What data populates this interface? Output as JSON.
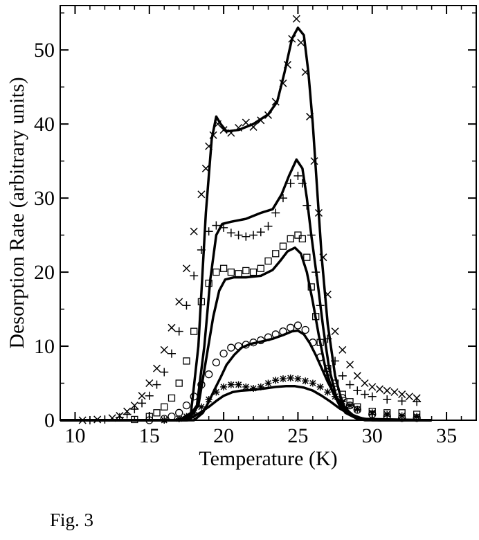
{
  "figure_caption": "Fig. 3",
  "chart_data": {
    "type": "scatter",
    "title": "",
    "xlabel": "Temperature (K)",
    "ylabel": "Desorption Rate (arbitrary units)",
    "xlim": [
      9,
      37
    ],
    "ylim": [
      0,
      56
    ],
    "xticks": [
      10,
      15,
      20,
      25,
      30,
      35
    ],
    "yticks": [
      0,
      10,
      20,
      30,
      40,
      50
    ],
    "grid": false,
    "legend": "none",
    "series": [
      {
        "marker": "x",
        "points": [
          [
            10.5,
            0
          ],
          [
            11.5,
            0.1
          ],
          [
            12.5,
            0.3
          ],
          [
            13,
            0.6
          ],
          [
            13.5,
            1.2
          ],
          [
            14,
            2
          ],
          [
            14.5,
            3.3
          ],
          [
            15,
            5
          ],
          [
            15.5,
            7
          ],
          [
            16,
            9.5
          ],
          [
            16.5,
            12.5
          ],
          [
            17,
            16
          ],
          [
            17.5,
            20.5
          ],
          [
            18,
            25.5
          ],
          [
            18.5,
            30.5
          ],
          [
            18.8,
            34
          ],
          [
            19,
            37
          ],
          [
            19.3,
            38.5
          ],
          [
            19.6,
            40
          ],
          [
            20,
            39.2
          ],
          [
            20.5,
            38.8
          ],
          [
            21,
            39.5
          ],
          [
            21.5,
            40.2
          ],
          [
            22,
            39.6
          ],
          [
            22.5,
            40.5
          ],
          [
            23,
            41.2
          ],
          [
            23.5,
            43
          ],
          [
            24,
            45.5
          ],
          [
            24.3,
            48
          ],
          [
            24.6,
            51.5
          ],
          [
            24.9,
            54.2
          ],
          [
            25.2,
            51
          ],
          [
            25.5,
            47
          ],
          [
            25.8,
            41
          ],
          [
            26.1,
            35
          ],
          [
            26.4,
            28
          ],
          [
            26.7,
            22
          ],
          [
            27,
            17
          ],
          [
            27.5,
            12
          ],
          [
            28,
            9.5
          ],
          [
            28.5,
            7.5
          ],
          [
            29,
            6
          ],
          [
            29.5,
            5
          ],
          [
            30,
            4.5
          ],
          [
            30.5,
            4.2
          ],
          [
            31,
            4
          ],
          [
            31.5,
            3.8
          ],
          [
            32,
            3.5
          ],
          [
            32.5,
            3.2
          ],
          [
            33,
            3
          ]
        ]
      },
      {
        "marker": "+",
        "points": [
          [
            11,
            0
          ],
          [
            12,
            0.1
          ],
          [
            13,
            0.4
          ],
          [
            13.5,
            0.8
          ],
          [
            14,
            1.5
          ],
          [
            14.5,
            2.3
          ],
          [
            15,
            3.3
          ],
          [
            15.5,
            4.8
          ],
          [
            16,
            6.5
          ],
          [
            16.5,
            9
          ],
          [
            17,
            12
          ],
          [
            17.5,
            15.5
          ],
          [
            18,
            19.5
          ],
          [
            18.5,
            23
          ],
          [
            19,
            25.5
          ],
          [
            19.5,
            26.3
          ],
          [
            20,
            26
          ],
          [
            20.5,
            25.3
          ],
          [
            21,
            25
          ],
          [
            21.5,
            24.8
          ],
          [
            22,
            25
          ],
          [
            22.5,
            25.4
          ],
          [
            23,
            26.2
          ],
          [
            23.5,
            28
          ],
          [
            24,
            30
          ],
          [
            24.5,
            32
          ],
          [
            25,
            33
          ],
          [
            25.3,
            32
          ],
          [
            25.6,
            29
          ],
          [
            25.9,
            25
          ],
          [
            26.2,
            20
          ],
          [
            26.5,
            15.5
          ],
          [
            27,
            11
          ],
          [
            27.5,
            8
          ],
          [
            28,
            6
          ],
          [
            28.5,
            4.8
          ],
          [
            29,
            4
          ],
          [
            29.5,
            3.5
          ],
          [
            30,
            3.2
          ],
          [
            31,
            2.8
          ],
          [
            32,
            2.6
          ],
          [
            33,
            2.5
          ]
        ]
      },
      {
        "marker": "square",
        "points": [
          [
            14,
            0.1
          ],
          [
            15,
            0.5
          ],
          [
            15.5,
            1
          ],
          [
            16,
            1.8
          ],
          [
            16.5,
            3
          ],
          [
            17,
            5
          ],
          [
            17.5,
            8
          ],
          [
            18,
            12
          ],
          [
            18.5,
            16
          ],
          [
            19,
            18.5
          ],
          [
            19.5,
            20
          ],
          [
            20,
            20.5
          ],
          [
            20.5,
            20
          ],
          [
            21,
            19.8
          ],
          [
            21.5,
            20.2
          ],
          [
            22,
            20
          ],
          [
            22.5,
            20.5
          ],
          [
            23,
            21.5
          ],
          [
            23.5,
            22.5
          ],
          [
            24,
            23.5
          ],
          [
            24.5,
            24.5
          ],
          [
            25,
            25
          ],
          [
            25.3,
            24.5
          ],
          [
            25.6,
            22
          ],
          [
            25.9,
            18
          ],
          [
            26.2,
            14
          ],
          [
            26.5,
            10.5
          ],
          [
            27,
            7
          ],
          [
            27.5,
            5
          ],
          [
            28,
            3.5
          ],
          [
            28.5,
            2.5
          ],
          [
            29,
            1.8
          ],
          [
            30,
            1.2
          ],
          [
            31,
            1
          ],
          [
            32,
            1
          ],
          [
            33,
            0.8
          ]
        ]
      },
      {
        "marker": "circle",
        "points": [
          [
            15,
            0
          ],
          [
            16,
            0.2
          ],
          [
            16.5,
            0.5
          ],
          [
            17,
            1
          ],
          [
            17.5,
            2
          ],
          [
            18,
            3.2
          ],
          [
            18.5,
            4.8
          ],
          [
            19,
            6.2
          ],
          [
            19.5,
            7.8
          ],
          [
            20,
            9
          ],
          [
            20.5,
            9.8
          ],
          [
            21,
            10
          ],
          [
            21.5,
            10.2
          ],
          [
            22,
            10.5
          ],
          [
            22.5,
            10.8
          ],
          [
            23,
            11.2
          ],
          [
            23.5,
            11.6
          ],
          [
            24,
            12
          ],
          [
            24.5,
            12.5
          ],
          [
            25,
            12.8
          ],
          [
            25.5,
            12.2
          ],
          [
            26,
            10.5
          ],
          [
            26.5,
            8.5
          ],
          [
            27,
            6.5
          ],
          [
            27.5,
            4.5
          ],
          [
            28,
            3
          ],
          [
            28.5,
            2
          ],
          [
            29,
            1.4
          ],
          [
            30,
            0.8
          ],
          [
            31,
            0.5
          ],
          [
            32,
            0.3
          ],
          [
            33,
            0.3
          ]
        ]
      },
      {
        "marker": "asterisk",
        "points": [
          [
            16,
            0
          ],
          [
            17,
            0.2
          ],
          [
            17.5,
            0.5
          ],
          [
            18,
            1
          ],
          [
            18.5,
            1.8
          ],
          [
            19,
            2.8
          ],
          [
            19.5,
            3.8
          ],
          [
            20,
            4.5
          ],
          [
            20.5,
            4.8
          ],
          [
            21,
            4.8
          ],
          [
            21.5,
            4.5
          ],
          [
            22,
            4.3
          ],
          [
            22.5,
            4.5
          ],
          [
            23,
            5
          ],
          [
            23.5,
            5.4
          ],
          [
            24,
            5.6
          ],
          [
            24.5,
            5.7
          ],
          [
            25,
            5.6
          ],
          [
            25.5,
            5.3
          ],
          [
            26,
            5
          ],
          [
            26.5,
            4.5
          ],
          [
            27,
            3.8
          ],
          [
            27.5,
            3.2
          ],
          [
            28,
            2.5
          ],
          [
            28.5,
            2
          ],
          [
            29,
            1.5
          ],
          [
            30,
            1
          ],
          [
            31,
            0.8
          ],
          [
            32,
            0.6
          ],
          [
            33,
            0.5
          ]
        ]
      }
    ],
    "curves": [
      {
        "points": [
          [
            9,
            0
          ],
          [
            17,
            0
          ],
          [
            17.8,
            1
          ],
          [
            18.3,
            10
          ],
          [
            18.8,
            28
          ],
          [
            19.2,
            38
          ],
          [
            19.5,
            41
          ],
          [
            19.8,
            40
          ],
          [
            20.2,
            39
          ],
          [
            21,
            39.2
          ],
          [
            22,
            40
          ],
          [
            23,
            41.3
          ],
          [
            23.6,
            43
          ],
          [
            24.1,
            47
          ],
          [
            24.6,
            51.5
          ],
          [
            25,
            53
          ],
          [
            25.4,
            52
          ],
          [
            25.7,
            47
          ],
          [
            26,
            40
          ],
          [
            26.3,
            31
          ],
          [
            26.6,
            22
          ],
          [
            27,
            13
          ],
          [
            27.5,
            6
          ],
          [
            28,
            2.2
          ],
          [
            28.7,
            0.5
          ],
          [
            30,
            0
          ],
          [
            34,
            0
          ]
        ]
      },
      {
        "points": [
          [
            9,
            0
          ],
          [
            17.5,
            0
          ],
          [
            18.2,
            2
          ],
          [
            18.7,
            10
          ],
          [
            19.1,
            19
          ],
          [
            19.5,
            25
          ],
          [
            19.9,
            26.5
          ],
          [
            20.5,
            26.8
          ],
          [
            21.5,
            27.2
          ],
          [
            22.5,
            28
          ],
          [
            23.3,
            28.5
          ],
          [
            23.9,
            30.5
          ],
          [
            24.4,
            33
          ],
          [
            24.9,
            35.2
          ],
          [
            25.3,
            34
          ],
          [
            25.6,
            30
          ],
          [
            25.9,
            25
          ],
          [
            26.3,
            19
          ],
          [
            26.7,
            12.5
          ],
          [
            27.1,
            7
          ],
          [
            27.6,
            3
          ],
          [
            28.2,
            1
          ],
          [
            29,
            0.2
          ],
          [
            34,
            0
          ]
        ]
      },
      {
        "points": [
          [
            9,
            0
          ],
          [
            17.6,
            0
          ],
          [
            18.3,
            2
          ],
          [
            18.8,
            8
          ],
          [
            19.3,
            14
          ],
          [
            19.7,
            17.5
          ],
          [
            20.1,
            19
          ],
          [
            20.7,
            19.3
          ],
          [
            21.5,
            19.3
          ],
          [
            22.5,
            19.5
          ],
          [
            23.3,
            20.3
          ],
          [
            23.8,
            21.5
          ],
          [
            24.3,
            22.8
          ],
          [
            24.8,
            23.3
          ],
          [
            25.2,
            22.5
          ],
          [
            25.6,
            20
          ],
          [
            26,
            16
          ],
          [
            26.4,
            11.5
          ],
          [
            26.8,
            7.5
          ],
          [
            27.3,
            4
          ],
          [
            27.8,
            2
          ],
          [
            28.5,
            0.7
          ],
          [
            29.5,
            0
          ],
          [
            34,
            0
          ]
        ]
      },
      {
        "points": [
          [
            9,
            0
          ],
          [
            18,
            0
          ],
          [
            18.6,
            1
          ],
          [
            19,
            2.5
          ],
          [
            19.4,
            4.2
          ],
          [
            19.8,
            5.8
          ],
          [
            20.2,
            7.5
          ],
          [
            20.7,
            8.8
          ],
          [
            21.2,
            9.8
          ],
          [
            21.8,
            10.3
          ],
          [
            22.5,
            10.6
          ],
          [
            23.3,
            11
          ],
          [
            24,
            11.5
          ],
          [
            24.6,
            12
          ],
          [
            25,
            12.1
          ],
          [
            25.4,
            11.6
          ],
          [
            25.8,
            10.4
          ],
          [
            26.2,
            8.8
          ],
          [
            26.6,
            7
          ],
          [
            27,
            5.2
          ],
          [
            27.5,
            3.3
          ],
          [
            28,
            1.9
          ],
          [
            28.7,
            0.7
          ],
          [
            29.5,
            0.1
          ],
          [
            34,
            0
          ]
        ]
      },
      {
        "points": [
          [
            9,
            0
          ],
          [
            17,
            0
          ],
          [
            17.8,
            0.3
          ],
          [
            18.4,
            1
          ],
          [
            19,
            1.8
          ],
          [
            19.5,
            2.6
          ],
          [
            20,
            3.3
          ],
          [
            20.6,
            3.8
          ],
          [
            21.2,
            4
          ],
          [
            22,
            4.1
          ],
          [
            22.8,
            4.3
          ],
          [
            23.5,
            4.5
          ],
          [
            24.2,
            4.6
          ],
          [
            24.8,
            4.6
          ],
          [
            25.4,
            4.4
          ],
          [
            26,
            4
          ],
          [
            26.6,
            3.3
          ],
          [
            27.2,
            2.5
          ],
          [
            27.8,
            1.6
          ],
          [
            28.4,
            0.9
          ],
          [
            29,
            0.4
          ],
          [
            29.7,
            0.1
          ],
          [
            30.5,
            0
          ],
          [
            34,
            0
          ]
        ]
      }
    ]
  }
}
